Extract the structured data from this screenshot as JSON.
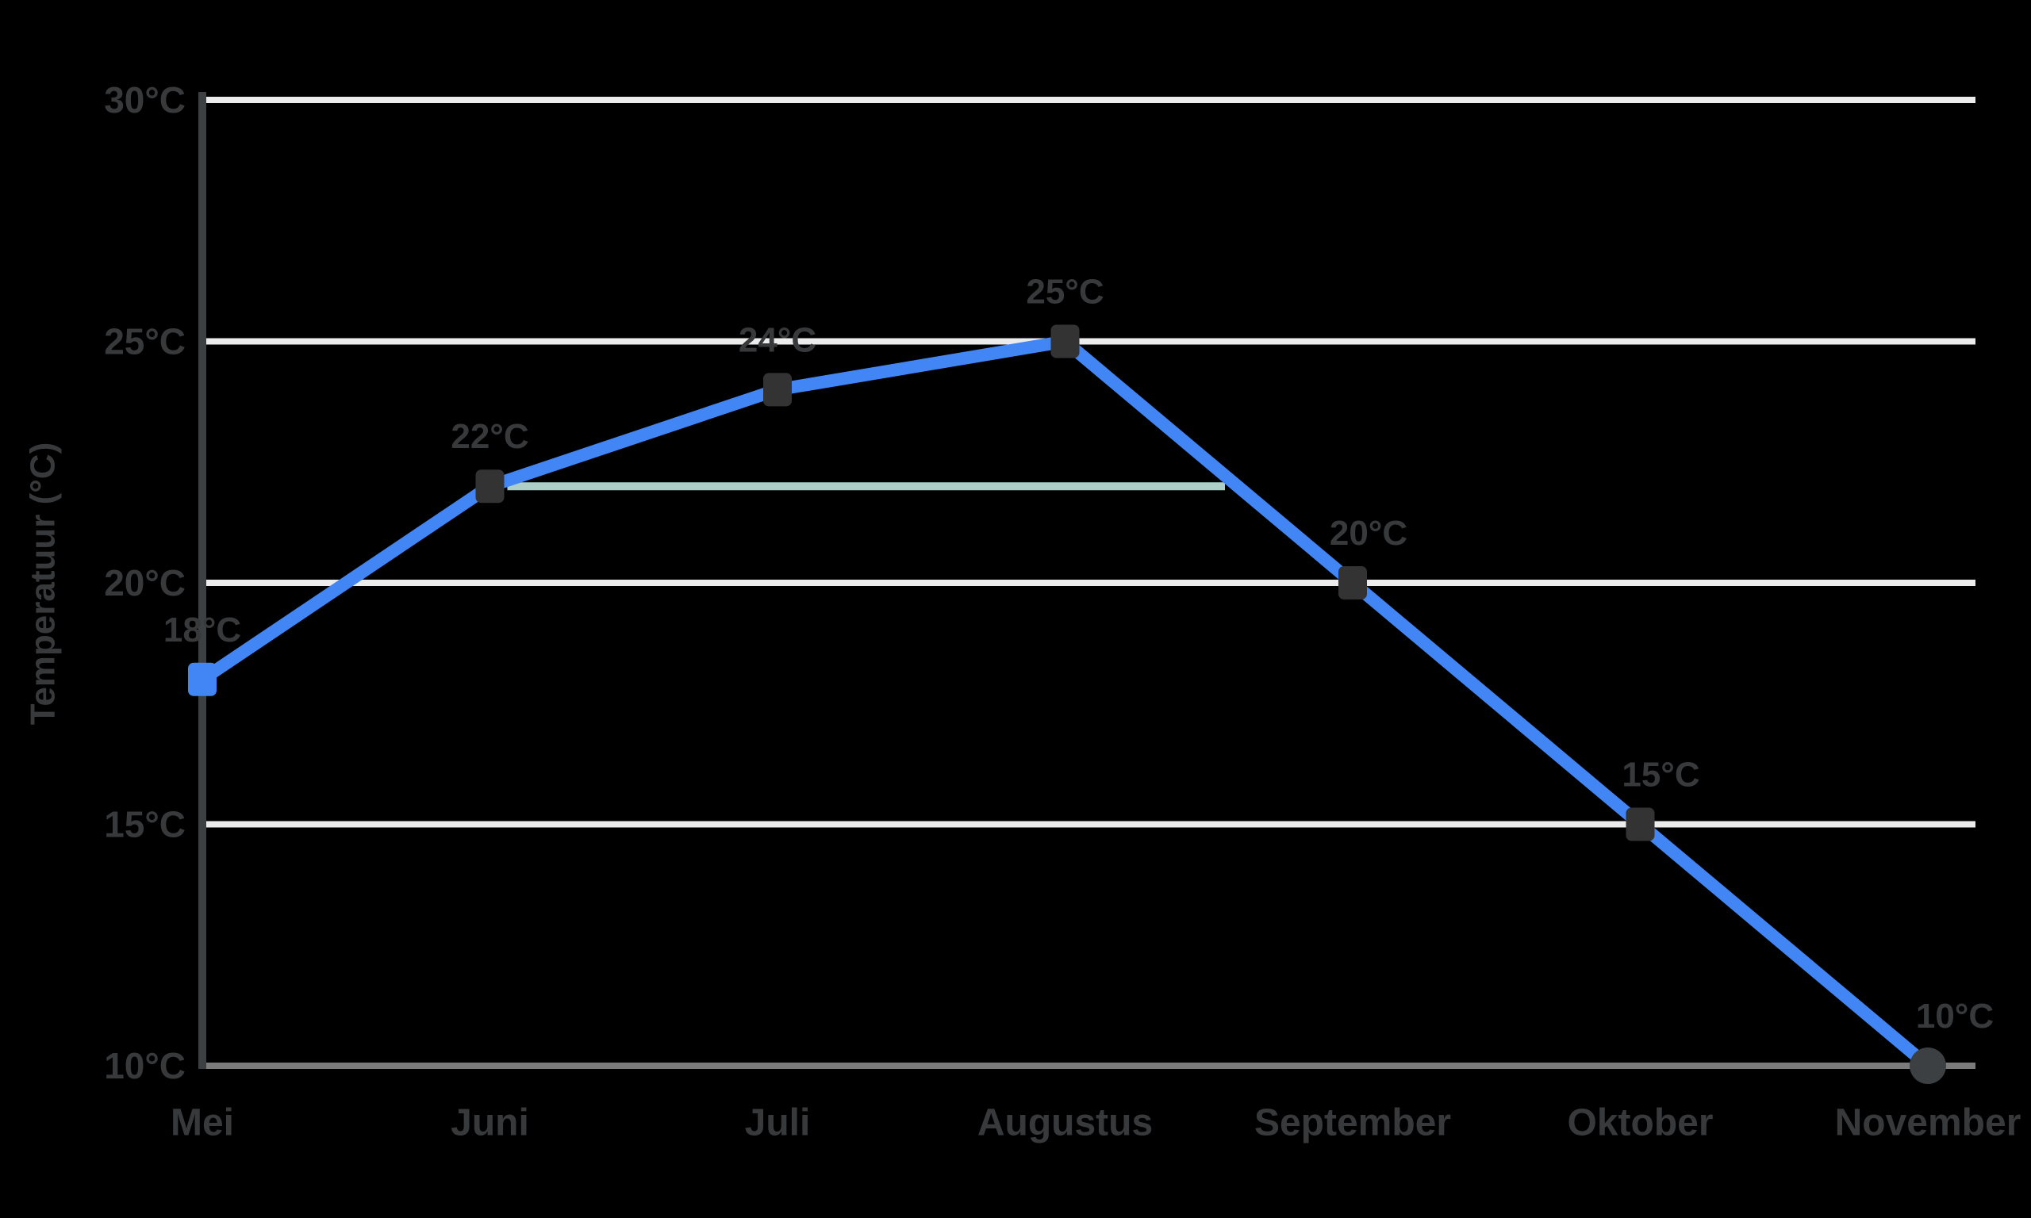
{
  "chart_data": {
    "type": "line",
    "title": "",
    "xlabel": "",
    "ylabel": "Temperatuur (°C)",
    "categories": [
      "Mei",
      "Juni",
      "Juli",
      "Augustus",
      "September",
      "Oktober",
      "November"
    ],
    "series": [
      {
        "name": "Temperatuur",
        "values": [
          18,
          22,
          24,
          25,
          20,
          15,
          10
        ]
      }
    ],
    "point_labels": [
      "18°C",
      "22°C",
      "24°C",
      "25°C",
      "20°C",
      "15°C",
      "10°C"
    ],
    "y_ticks": {
      "values": [
        30,
        25,
        20,
        15,
        10
      ],
      "labels": [
        "30°C",
        "25°C",
        "20°C",
        "15°C",
        "10°C"
      ]
    },
    "ylim": [
      10,
      30
    ],
    "grid": "horizontal-only",
    "legend_position": "none",
    "reference_line": {
      "value": 22,
      "start_category": "Juni",
      "end_before_descending_segment": true
    },
    "colors": {
      "line": "#4285f4",
      "marker": "#333333",
      "last_marker": "#3c4043",
      "first_marker": "#4285f4",
      "grid": "#ececec",
      "baseline_grid": "#7b7b7b",
      "axis": "#3d4043",
      "text": "#37393b",
      "reference": "#aecfc8",
      "background": "#000000"
    }
  }
}
